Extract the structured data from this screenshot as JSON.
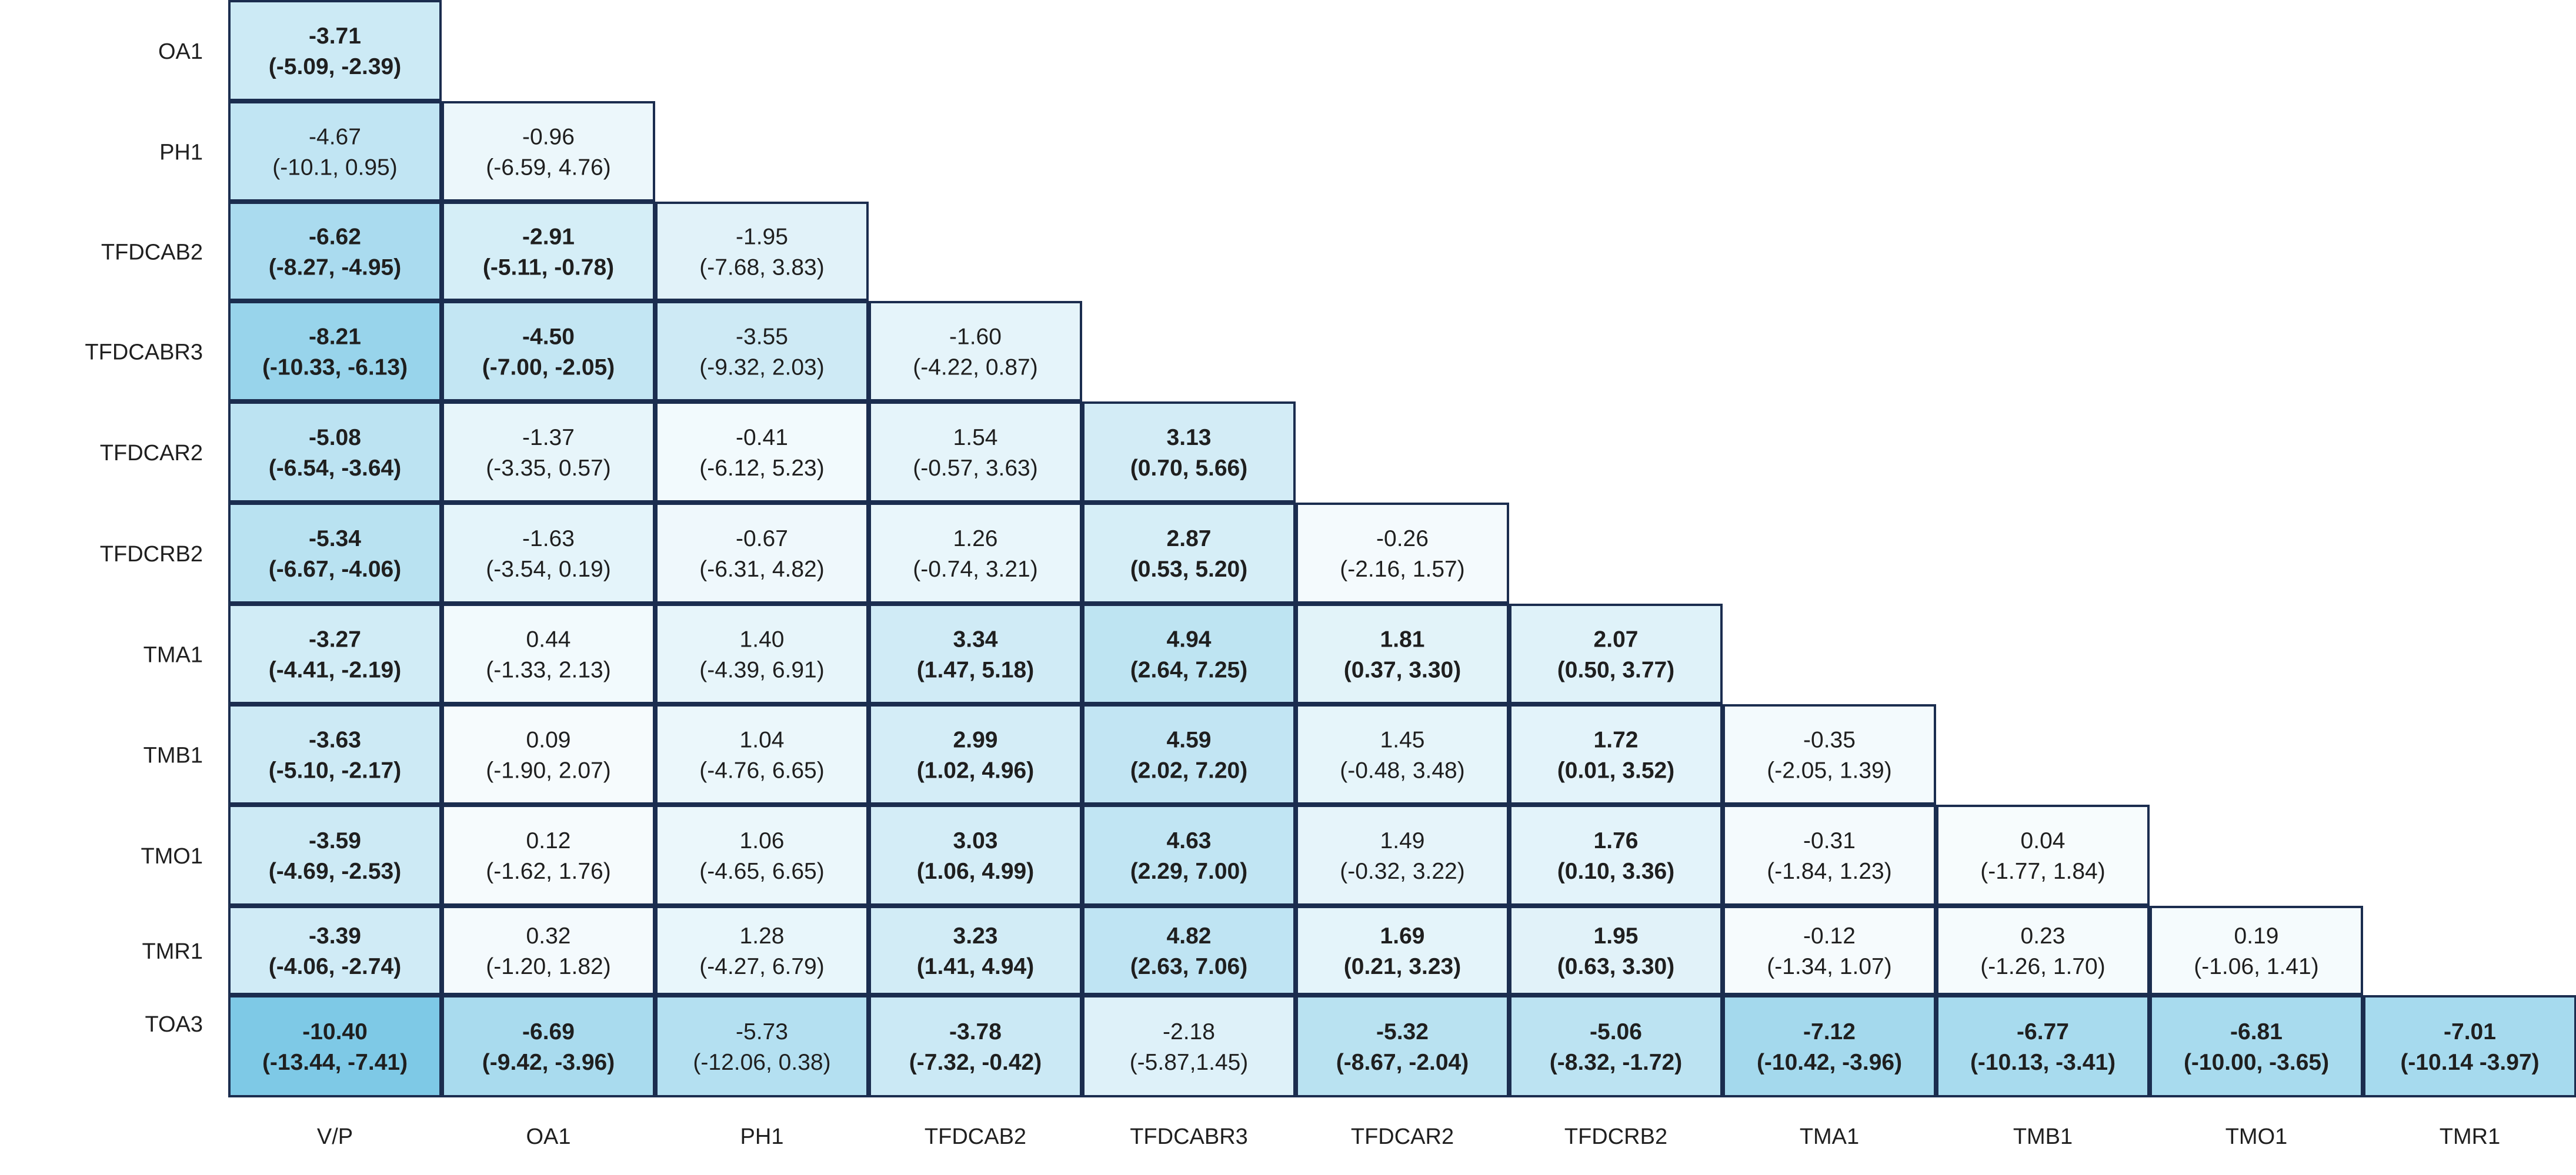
{
  "chart_data": {
    "type": "table",
    "row_labels": [
      "OA1",
      "PH1",
      "TFDCAB2",
      "TFDCABR3",
      "TFDCAR2",
      "TFDCRB2",
      "TMA1",
      "TMB1",
      "TMO1",
      "TMR1",
      "TOA3"
    ],
    "col_labels": [
      "V/P",
      "OA1",
      "PH1",
      "TFDCAB2",
      "TFDCABR3",
      "TFDCAR2",
      "TFDCRB2",
      "TMA1",
      "TMB1",
      "TMO1",
      "TMR1"
    ],
    "shading_scale": {
      "low_color": "#ffffff",
      "high_color": "#7ec9e6",
      "max_abs_value": 10.4
    },
    "border_color": "#1b2d4f",
    "rows": [
      [
        {
          "value": -3.71,
          "est": "-3.71",
          "ci": "(-5.09, -2.39)",
          "bold": true
        }
      ],
      [
        {
          "value": -4.67,
          "est": "-4.67",
          "ci": "(-10.1, 0.95)",
          "bold": false
        },
        {
          "value": -0.96,
          "est": "-0.96",
          "ci": "(-6.59, 4.76)",
          "bold": false
        }
      ],
      [
        {
          "value": -6.62,
          "est": "-6.62",
          "ci": "(-8.27, -4.95)",
          "bold": true
        },
        {
          "value": -2.91,
          "est": "-2.91",
          "ci": "(-5.11, -0.78)",
          "bold": true
        },
        {
          "value": -1.95,
          "est": "-1.95",
          "ci": "(-7.68, 3.83)",
          "bold": false
        }
      ],
      [
        {
          "value": -8.21,
          "est": "-8.21",
          "ci": "(-10.33, -6.13)",
          "bold": true
        },
        {
          "value": -4.5,
          "est": "-4.50",
          "ci": "(-7.00, -2.05)",
          "bold": true
        },
        {
          "value": -3.55,
          "est": "-3.55",
          "ci": "(-9.32, 2.03)",
          "bold": false
        },
        {
          "value": -1.6,
          "est": "-1.60",
          "ci": "(-4.22, 0.87)",
          "bold": false
        }
      ],
      [
        {
          "value": -5.08,
          "est": "-5.08",
          "ci": "(-6.54, -3.64)",
          "bold": true
        },
        {
          "value": -1.37,
          "est": "-1.37",
          "ci": "(-3.35, 0.57)",
          "bold": false
        },
        {
          "value": -0.41,
          "est": "-0.41",
          "ci": "(-6.12, 5.23)",
          "bold": false
        },
        {
          "value": 1.54,
          "est": "1.54",
          "ci": "(-0.57, 3.63)",
          "bold": false
        },
        {
          "value": 3.13,
          "est": "3.13",
          "ci": "(0.70, 5.66)",
          "bold": true
        }
      ],
      [
        {
          "value": -5.34,
          "est": "-5.34",
          "ci": "(-6.67, -4.06)",
          "bold": true
        },
        {
          "value": -1.63,
          "est": "-1.63",
          "ci": "(-3.54, 0.19)",
          "bold": false
        },
        {
          "value": -0.67,
          "est": "-0.67",
          "ci": "(-6.31, 4.82)",
          "bold": false
        },
        {
          "value": 1.26,
          "est": "1.26",
          "ci": "(-0.74, 3.21)",
          "bold": false
        },
        {
          "value": 2.87,
          "est": "2.87",
          "ci": "(0.53, 5.20)",
          "bold": true
        },
        {
          "value": -0.26,
          "est": "-0.26",
          "ci": "(-2.16, 1.57)",
          "bold": false
        }
      ],
      [
        {
          "value": -3.27,
          "est": "-3.27",
          "ci": "(-4.41, -2.19)",
          "bold": true
        },
        {
          "value": 0.44,
          "est": "0.44",
          "ci": "(-1.33, 2.13)",
          "bold": false
        },
        {
          "value": 1.4,
          "est": "1.40",
          "ci": "(-4.39, 6.91)",
          "bold": false
        },
        {
          "value": 3.34,
          "est": "3.34",
          "ci": "(1.47, 5.18)",
          "bold": true
        },
        {
          "value": 4.94,
          "est": "4.94",
          "ci": "(2.64, 7.25)",
          "bold": true
        },
        {
          "value": 1.81,
          "est": "1.81",
          "ci": "(0.37, 3.30)",
          "bold": true
        },
        {
          "value": 2.07,
          "est": "2.07",
          "ci": "(0.50, 3.77)",
          "bold": true
        }
      ],
      [
        {
          "value": -3.63,
          "est": "-3.63",
          "ci": "(-5.10, -2.17)",
          "bold": true
        },
        {
          "value": 0.09,
          "est": "0.09",
          "ci": "(-1.90, 2.07)",
          "bold": false
        },
        {
          "value": 1.04,
          "est": "1.04",
          "ci": "(-4.76, 6.65)",
          "bold": false
        },
        {
          "value": 2.99,
          "est": "2.99",
          "ci": "(1.02, 4.96)",
          "bold": true
        },
        {
          "value": 4.59,
          "est": "4.59",
          "ci": "(2.02, 7.20)",
          "bold": true
        },
        {
          "value": 1.45,
          "est": "1.45",
          "ci": "(-0.48, 3.48)",
          "bold": false
        },
        {
          "value": 1.72,
          "est": "1.72",
          "ci": "(0.01, 3.52)",
          "bold": true
        },
        {
          "value": -0.35,
          "est": "-0.35",
          "ci": "(-2.05, 1.39)",
          "bold": false
        }
      ],
      [
        {
          "value": -3.59,
          "est": "-3.59",
          "ci": "(-4.69, -2.53)",
          "bold": true
        },
        {
          "value": 0.12,
          "est": "0.12",
          "ci": "(-1.62, 1.76)",
          "bold": false
        },
        {
          "value": 1.06,
          "est": "1.06",
          "ci": "(-4.65, 6.65)",
          "bold": false
        },
        {
          "value": 3.03,
          "est": "3.03",
          "ci": "(1.06, 4.99)",
          "bold": true
        },
        {
          "value": 4.63,
          "est": "4.63",
          "ci": "(2.29, 7.00)",
          "bold": true
        },
        {
          "value": 1.49,
          "est": "1.49",
          "ci": "(-0.32, 3.22)",
          "bold": false
        },
        {
          "value": 1.76,
          "est": "1.76",
          "ci": "(0.10, 3.36)",
          "bold": true
        },
        {
          "value": -0.31,
          "est": "-0.31",
          "ci": "(-1.84, 1.23)",
          "bold": false
        },
        {
          "value": 0.04,
          "est": "0.04",
          "ci": "(-1.77, 1.84)",
          "bold": false
        }
      ],
      [
        {
          "value": -3.39,
          "est": "-3.39",
          "ci": "(-4.06, -2.74)",
          "bold": true
        },
        {
          "value": 0.32,
          "est": "0.32",
          "ci": "(-1.20, 1.82)",
          "bold": false
        },
        {
          "value": 1.28,
          "est": "1.28",
          "ci": "(-4.27, 6.79)",
          "bold": false
        },
        {
          "value": 3.23,
          "est": "3.23",
          "ci": "(1.41, 4.94)",
          "bold": true
        },
        {
          "value": 4.82,
          "est": "4.82",
          "ci": "(2.63, 7.06)",
          "bold": true
        },
        {
          "value": 1.69,
          "est": "1.69",
          "ci": "(0.21, 3.23)",
          "bold": true
        },
        {
          "value": 1.95,
          "est": "1.95",
          "ci": "(0.63, 3.30)",
          "bold": true
        },
        {
          "value": -0.12,
          "est": "-0.12",
          "ci": "(-1.34, 1.07)",
          "bold": false
        },
        {
          "value": 0.23,
          "est": "0.23",
          "ci": "(-1.26, 1.70)",
          "bold": false
        },
        {
          "value": 0.19,
          "est": "0.19",
          "ci": "(-1.06, 1.41)",
          "bold": false
        }
      ],
      [
        {
          "value": -10.4,
          "est": "-10.40",
          "ci": "(-13.44, -7.41)",
          "bold": true
        },
        {
          "value": -6.69,
          "est": "-6.69",
          "ci": "(-9.42, -3.96)",
          "bold": true
        },
        {
          "value": -5.73,
          "est": "-5.73",
          "ci": "(-12.06, 0.38)",
          "bold": false
        },
        {
          "value": -3.78,
          "est": "-3.78",
          "ci": "(-7.32, -0.42)",
          "bold": true
        },
        {
          "value": -2.18,
          "est": "-2.18",
          "ci": "(-5.87,1.45)",
          "bold": false
        },
        {
          "value": -5.32,
          "est": "-5.32",
          "ci": "(-8.67, -2.04)",
          "bold": true
        },
        {
          "value": -5.06,
          "est": "-5.06",
          "ci": "(-8.32, -1.72)",
          "bold": true
        },
        {
          "value": -7.12,
          "est": "-7.12",
          "ci": "(-10.42, -3.96)",
          "bold": true
        },
        {
          "value": -6.77,
          "est": "-6.77",
          "ci": "(-10.13, -3.41)",
          "bold": true
        },
        {
          "value": -6.81,
          "est": "-6.81",
          "ci": "(-10.00, -3.65)",
          "bold": true
        },
        {
          "value": -7.01,
          "est": "-7.01",
          "ci": "(-10.14 -3.97)",
          "bold": true
        }
      ]
    ]
  }
}
